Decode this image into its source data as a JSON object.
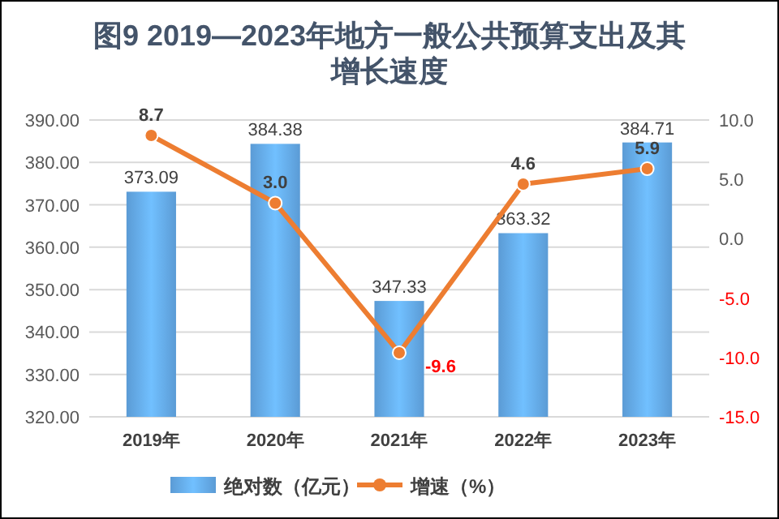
{
  "chart_data": {
    "type": "bar",
    "title": "图9 2019—2023年地方一般公共预算支出及其增长速度",
    "categories": [
      "2019年",
      "2020年",
      "2021年",
      "2022年",
      "2023年"
    ],
    "series": [
      {
        "name": "绝对数（亿元）",
        "color": "#5b9bd5",
        "values": [
          373.09,
          384.38,
          347.33,
          363.32,
          384.71
        ]
      },
      {
        "name": "增速（%）",
        "type": "line",
        "axis": "y2",
        "color": "#ed7d31",
        "marker": "circle",
        "values": [
          8.7,
          3.0,
          -9.6,
          4.6,
          5.9
        ],
        "value_labels": [
          "8.7",
          "3.0",
          "-9.6",
          "4.6",
          "5.9"
        ]
      }
    ],
    "ylim": [
      320,
      390
    ],
    "yticks": [
      {
        "value": 320,
        "label": "320.00"
      },
      {
        "value": 330,
        "label": "330.00"
      },
      {
        "value": 340,
        "label": "340.00"
      },
      {
        "value": 350,
        "label": "350.00"
      },
      {
        "value": 360,
        "label": "360.00"
      },
      {
        "value": 370,
        "label": "370.00"
      },
      {
        "value": 380,
        "label": "380.00"
      },
      {
        "value": 390,
        "label": "390.00"
      }
    ],
    "y2lim": [
      -15,
      10
    ],
    "y2ticks": [
      {
        "value": -15,
        "label": "-15.0"
      },
      {
        "value": -10,
        "label": "-10.0"
      },
      {
        "value": -5,
        "label": "-5.0"
      },
      {
        "value": 0,
        "label": "0.0"
      },
      {
        "value": 5,
        "label": "5.0"
      },
      {
        "value": 10,
        "label": "10.0"
      }
    ],
    "grid": "y",
    "legend": "bottom",
    "data_labels": true
  }
}
